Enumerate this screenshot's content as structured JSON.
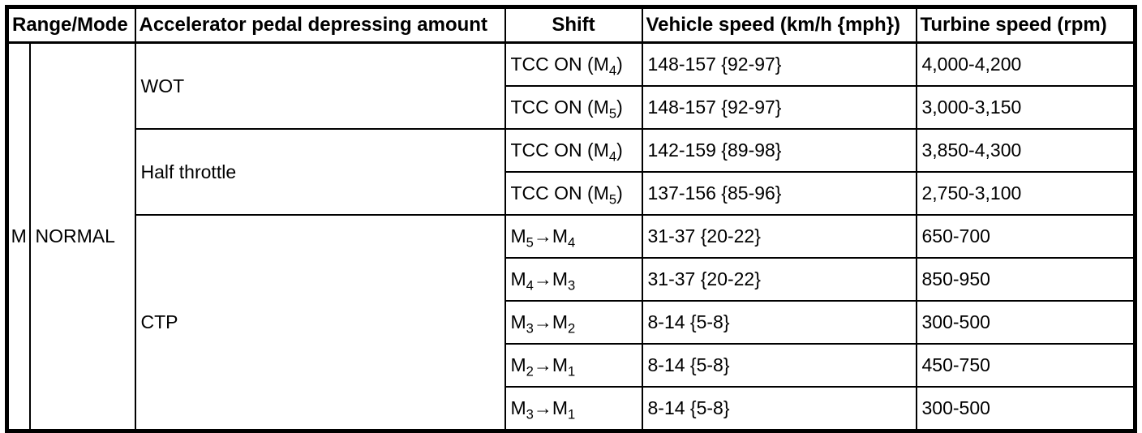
{
  "table": {
    "headers": {
      "range_mode": "Range/Mode",
      "accelerator": "Accelerator pedal depressing amount",
      "shift": "Shift",
      "vehicle_speed": "Vehicle speed (km/h {mph})",
      "turbine_speed": "Turbine speed (rpm)"
    },
    "range": "M",
    "mode": "NORMAL",
    "groups": [
      {
        "label": "WOT"
      },
      {
        "label": "Half throttle"
      },
      {
        "label": "CTP"
      }
    ],
    "rows": [
      {
        "shift_parts": [
          [
            "TCC ON (M",
            false
          ],
          [
            "4",
            true
          ],
          [
            ")",
            false
          ]
        ],
        "vehicle_speed": "148-157 {92-97}",
        "turbine_speed": "4,000-4,200"
      },
      {
        "shift_parts": [
          [
            "TCC ON (M",
            false
          ],
          [
            "5",
            true
          ],
          [
            ")",
            false
          ]
        ],
        "vehicle_speed": "148-157 {92-97}",
        "turbine_speed": "3,000-3,150"
      },
      {
        "shift_parts": [
          [
            "TCC ON (M",
            false
          ],
          [
            "4",
            true
          ],
          [
            ")",
            false
          ]
        ],
        "vehicle_speed": "142-159 {89-98}",
        "turbine_speed": "3,850-4,300"
      },
      {
        "shift_parts": [
          [
            "TCC ON (M",
            false
          ],
          [
            "5",
            true
          ],
          [
            ")",
            false
          ]
        ],
        "vehicle_speed": "137-156 {85-96}",
        "turbine_speed": "2,750-3,100"
      },
      {
        "shift_parts": [
          [
            "M",
            false
          ],
          [
            "5",
            true
          ],
          [
            "→",
            false
          ],
          [
            "M",
            false
          ],
          [
            "4",
            true
          ]
        ],
        "vehicle_speed": "31-37 {20-22}",
        "turbine_speed": "650-700"
      },
      {
        "shift_parts": [
          [
            "M",
            false
          ],
          [
            "4",
            true
          ],
          [
            "→",
            false
          ],
          [
            "M",
            false
          ],
          [
            "3",
            true
          ]
        ],
        "vehicle_speed": "31-37 {20-22}",
        "turbine_speed": "850-950"
      },
      {
        "shift_parts": [
          [
            "M",
            false
          ],
          [
            "3",
            true
          ],
          [
            "→",
            false
          ],
          [
            "M",
            false
          ],
          [
            "2",
            true
          ]
        ],
        "vehicle_speed": "8-14 {5-8}",
        "turbine_speed": "300-500"
      },
      {
        "shift_parts": [
          [
            "M",
            false
          ],
          [
            "2",
            true
          ],
          [
            "→",
            false
          ],
          [
            "M",
            false
          ],
          [
            "1",
            true
          ]
        ],
        "vehicle_speed": "8-14 {5-8}",
        "turbine_speed": "450-750"
      },
      {
        "shift_parts": [
          [
            "M",
            false
          ],
          [
            "3",
            true
          ],
          [
            "→",
            false
          ],
          [
            "M",
            false
          ],
          [
            "1",
            true
          ]
        ],
        "vehicle_speed": "8-14 {5-8}",
        "turbine_speed": "300-500"
      }
    ]
  }
}
